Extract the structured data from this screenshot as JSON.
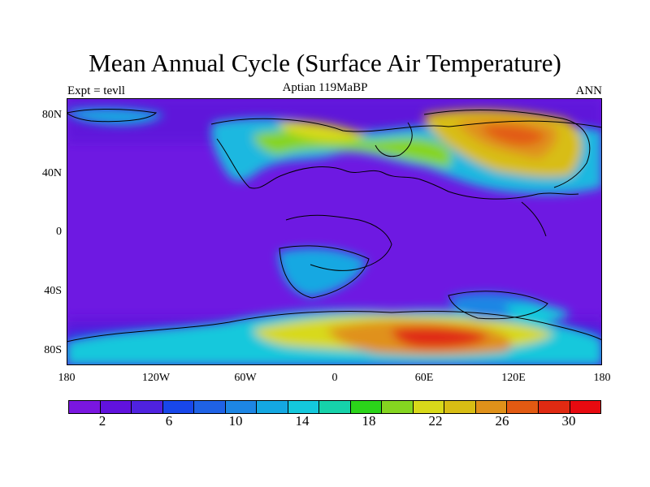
{
  "title": "Mean Annual Cycle (Surface Air Temperature)",
  "subtitle_left": "Expt = tevll",
  "subtitle_center": "Aptian   119MaBP",
  "subtitle_right": "ANN",
  "lat_ticks": [
    "80N",
    "40N",
    "0",
    "40S",
    "80S"
  ],
  "lon_ticks": [
    "180",
    "120W",
    "60W",
    "0",
    "60E",
    "120E",
    "180"
  ],
  "colorbar": {
    "colors": [
      "#7a16e0",
      "#6112de",
      "#4f22e0",
      "#1847ea",
      "#1f62e6",
      "#1d86e4",
      "#14a8e2",
      "#14c8dc",
      "#16d2aa",
      "#2bd41a",
      "#85d520",
      "#d8d91a",
      "#d8bd14",
      "#e0911a",
      "#e25a12",
      "#e02a12",
      "#e80a10"
    ],
    "labels": [
      "2",
      "6",
      "10",
      "14",
      "18",
      "22",
      "26",
      "30"
    ]
  },
  "map": {
    "ocean_color": "#6e19e2",
    "cold_land_color": "#5a14d8"
  }
}
